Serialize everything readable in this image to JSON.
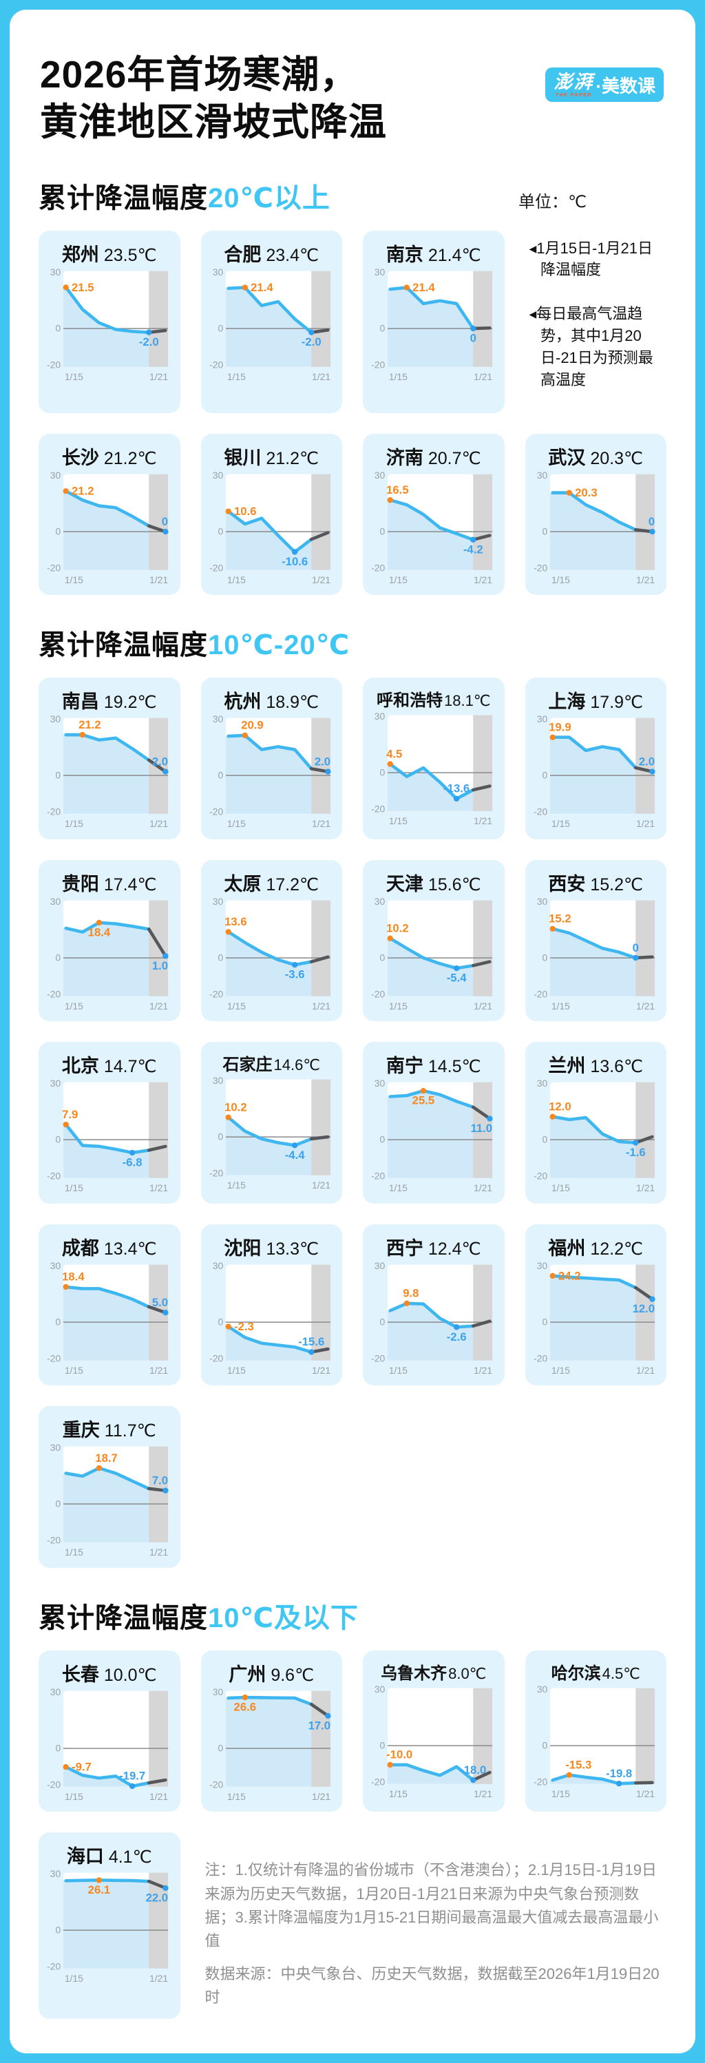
{
  "frame": {
    "title_line1": "2026年首场寒潮，",
    "title_line2": "黄淮地区滑坡式降温",
    "unit_label": "单位：℃",
    "logo": {
      "brand": "澎湃",
      "sub": "THE PAPER",
      "suffix": "·美数课"
    }
  },
  "legend": {
    "marker": "◀",
    "item1": "1月15日-1月21日降温幅度",
    "item2": "每日最高气温趋势，其中1月20日-21日为预测最高温度"
  },
  "sections": [
    {
      "title_black": "累计降温幅度",
      "title_blue": "20℃以上"
    },
    {
      "title_black": "累计降温幅度",
      "title_blue": "10℃-20℃"
    },
    {
      "title_black": "累计降温幅度",
      "title_blue": "10℃及以下"
    }
  ],
  "axis": {
    "y_ticks": [
      "30",
      "0",
      "-20"
    ],
    "x_ticks": [
      "1/15",
      "1/21"
    ],
    "ylim": [
      -20,
      30
    ],
    "x": [
      "1/15",
      "1/16",
      "1/17",
      "1/18",
      "1/19",
      "1/20",
      "1/21"
    ],
    "forecast_band_idx": [
      5,
      6
    ]
  },
  "notes": {
    "note1": "注：1.仅统计有降温的省份城市（不含港澳台）；2.1月15日-1月19日来源为历史天气数据，1月20日-1月21日来源为中央气象台预测数据；3.累计降温幅度为1月15-21日期间最高温最大值减去最高温最小值",
    "source": "数据来源：中央气象台、历史天气数据，数据截至2026年1月19日20时"
  },
  "colors": {
    "frame_blue": "#40c5f1",
    "accent_blue": "#3fc6f3",
    "card_bg": "#e1f3fc",
    "area": "#cfe9f8",
    "band": "#d6d6d6",
    "line": "#3eb7f0",
    "forecast": "#55575a",
    "orange": "#f6881f",
    "dotblue": "#2d9ff0",
    "valblue": "#3aa2ee",
    "axis_gray": "#9aa0a6",
    "note_gray": "#8f8f8f"
  },
  "chart_data": [
    {
      "type": "line",
      "city": "郑州",
      "drop": "23.5℃",
      "section": 0,
      "values": [
        21.5,
        10,
        3,
        -0.5,
        -1.5,
        -2,
        -1
      ],
      "max_idx": 0,
      "max_label": "21.5",
      "lp_max": "r",
      "min_idx": 5,
      "min_label": "-2.0",
      "lp_min": "b"
    },
    {
      "type": "line",
      "city": "合肥",
      "drop": "23.4℃",
      "section": 0,
      "values": [
        21,
        21.4,
        12,
        14,
        5,
        -2,
        -0.8
      ],
      "max_idx": 1,
      "max_label": "21.4",
      "lp_max": "r",
      "min_idx": 5,
      "min_label": "-2.0",
      "lp_min": "b"
    },
    {
      "type": "line",
      "city": "南京",
      "drop": "21.4℃",
      "section": 0,
      "values": [
        20.5,
        21.4,
        13,
        14.5,
        13,
        0,
        0.3
      ],
      "max_idx": 1,
      "max_label": "21.4",
      "lp_max": "r",
      "min_idx": 5,
      "min_label": "0",
      "lp_min": "b"
    },
    {
      "type": "line",
      "city": "长沙",
      "drop": "21.2℃",
      "section": 0,
      "values": [
        21.2,
        16.5,
        13.5,
        12.5,
        8,
        3,
        0
      ],
      "max_idx": 0,
      "max_label": "21.2",
      "lp_max": "r",
      "min_idx": 6,
      "min_label": "0",
      "lp_min": "a"
    },
    {
      "type": "line",
      "city": "银川",
      "drop": "21.2℃",
      "section": 0,
      "values": [
        10.6,
        4,
        7,
        -2,
        -10.6,
        -4,
        -0.5
      ],
      "max_idx": 0,
      "max_label": "10.6",
      "lp_max": "r",
      "min_idx": 4,
      "min_label": "-10.6",
      "lp_min": "b"
    },
    {
      "type": "line",
      "city": "济南",
      "drop": "20.7℃",
      "section": 0,
      "values": [
        16.5,
        14,
        9,
        2,
        -1,
        -4.2,
        -2
      ],
      "max_idx": 0,
      "max_label": "16.5",
      "lp_max": "a",
      "min_idx": 5,
      "min_label": "-4.2",
      "lp_min": "b"
    },
    {
      "type": "line",
      "city": "武汉",
      "drop": "20.3℃",
      "section": 0,
      "values": [
        20.3,
        20.3,
        14,
        10,
        5,
        1,
        0
      ],
      "max_idx": 1,
      "max_label": "20.3",
      "lp_max": "r",
      "min_idx": 6,
      "min_label": "0",
      "lp_min": "a"
    },
    {
      "type": "line",
      "city": "南昌",
      "drop": "19.2℃",
      "section": 1,
      "values": [
        21.2,
        21.2,
        18.5,
        19.5,
        14,
        8,
        2
      ],
      "max_idx": 1,
      "max_label": "21.2",
      "lp_max": "a",
      "min_idx": 6,
      "min_label": "2.0",
      "lp_min": "a"
    },
    {
      "type": "line",
      "city": "杭州",
      "drop": "18.9℃",
      "section": 1,
      "values": [
        20.5,
        20.9,
        13.5,
        15,
        13.5,
        3.5,
        2
      ],
      "max_idx": 1,
      "max_label": "20.9",
      "lp_max": "a",
      "min_idx": 6,
      "min_label": "2.0",
      "lp_min": "a"
    },
    {
      "type": "line",
      "city": "呼和浩特",
      "drop": "18.1℃",
      "section": 1,
      "values": [
        4.5,
        -2,
        2.5,
        -5,
        -13.6,
        -9,
        -7
      ],
      "max_idx": 0,
      "max_label": "4.5",
      "lp_max": "a",
      "min_idx": 4,
      "min_label": "-13.6",
      "lp_min": "a"
    },
    {
      "type": "line",
      "city": "上海",
      "drop": "17.9℃",
      "section": 1,
      "values": [
        19.9,
        19.9,
        13,
        15,
        13.5,
        4,
        2
      ],
      "max_idx": 0,
      "max_label": "19.9",
      "lp_max": "a",
      "min_idx": 6,
      "min_label": "2.0",
      "lp_min": "a"
    },
    {
      "type": "line",
      "city": "贵阳",
      "drop": "17.4℃",
      "section": 1,
      "values": [
        15.5,
        13.5,
        18.4,
        17.8,
        16.5,
        15,
        1
      ],
      "max_idx": 2,
      "max_label": "18.4",
      "lp_max": "b",
      "min_idx": 6,
      "min_label": "1.0",
      "lp_min": "b"
    },
    {
      "type": "line",
      "city": "太原",
      "drop": "17.2℃",
      "section": 1,
      "values": [
        13.6,
        8,
        3,
        -1,
        -3.6,
        -2,
        0.5
      ],
      "max_idx": 0,
      "max_label": "13.6",
      "lp_max": "a",
      "min_idx": 4,
      "min_label": "-3.6",
      "lp_min": "b"
    },
    {
      "type": "line",
      "city": "天津",
      "drop": "15.6℃",
      "section": 1,
      "values": [
        10.2,
        5,
        0,
        -3,
        -5.4,
        -4,
        -2
      ],
      "max_idx": 0,
      "max_label": "10.2",
      "lp_max": "a",
      "min_idx": 4,
      "min_label": "-5.4",
      "lp_min": "b"
    },
    {
      "type": "line",
      "city": "西安",
      "drop": "15.2℃",
      "section": 1,
      "values": [
        15.2,
        13,
        9,
        5,
        3,
        0,
        0.5
      ],
      "max_idx": 0,
      "max_label": "15.2",
      "lp_max": "a",
      "min_idx": 5,
      "min_label": "0",
      "lp_min": "a"
    },
    {
      "type": "line",
      "city": "北京",
      "drop": "14.7℃",
      "section": 1,
      "values": [
        7.9,
        -3,
        -3.5,
        -5,
        -6.8,
        -5.5,
        -3.5
      ],
      "max_idx": 0,
      "max_label": "7.9",
      "lp_max": "a",
      "min_idx": 4,
      "min_label": "-6.8",
      "lp_min": "b"
    },
    {
      "type": "line",
      "city": "石家庄",
      "drop": "14.6℃",
      "section": 1,
      "values": [
        10.2,
        3,
        -1,
        -3,
        -4.4,
        -1,
        0
      ],
      "max_idx": 0,
      "max_label": "10.2",
      "lp_max": "a",
      "min_idx": 4,
      "min_label": "-4.4",
      "lp_min": "b"
    },
    {
      "type": "line",
      "city": "南宁",
      "drop": "14.5℃",
      "section": 1,
      "values": [
        22.5,
        23,
        25.5,
        23.5,
        20,
        17,
        11
      ],
      "max_idx": 2,
      "max_label": "25.5",
      "lp_max": "b",
      "min_idx": 6,
      "min_label": "11.0",
      "lp_min": "b"
    },
    {
      "type": "line",
      "city": "兰州",
      "drop": "13.6℃",
      "section": 1,
      "values": [
        12,
        10.5,
        11.5,
        3,
        -1,
        -1.6,
        1.5
      ],
      "max_idx": 0,
      "max_label": "12.0",
      "lp_max": "a",
      "min_idx": 5,
      "min_label": "-1.6",
      "lp_min": "b"
    },
    {
      "type": "line",
      "city": "成都",
      "drop": "13.4℃",
      "section": 1,
      "values": [
        18.4,
        17.5,
        17.5,
        15,
        12,
        8,
        5
      ],
      "max_idx": 0,
      "max_label": "18.4",
      "lp_max": "a",
      "min_idx": 6,
      "min_label": "5.0",
      "lp_min": "a"
    },
    {
      "type": "line",
      "city": "沈阳",
      "drop": "13.3℃",
      "section": 1,
      "values": [
        -2.3,
        -8,
        -11,
        -12,
        -13,
        -15.6,
        -14
      ],
      "max_idx": 0,
      "max_label": "-2.3",
      "lp_max": "r",
      "min_idx": 5,
      "min_label": "-15.6",
      "lp_min": "a"
    },
    {
      "type": "line",
      "city": "西宁",
      "drop": "12.4℃",
      "section": 1,
      "values": [
        6,
        9.8,
        9.5,
        2,
        -2.6,
        -2,
        0.5
      ],
      "max_idx": 1,
      "max_label": "9.8",
      "lp_max": "a",
      "min_idx": 4,
      "min_label": "-2.6",
      "lp_min": "b"
    },
    {
      "type": "line",
      "city": "福州",
      "drop": "12.2℃",
      "section": 1,
      "values": [
        24.2,
        23.5,
        23,
        22.5,
        22,
        18,
        12
      ],
      "max_idx": 0,
      "max_label": "24.2",
      "lp_max": "r",
      "min_idx": 6,
      "min_label": "12.0",
      "lp_min": "b"
    },
    {
      "type": "line",
      "city": "重庆",
      "drop": "11.7℃",
      "section": 1,
      "values": [
        16,
        14.5,
        18.7,
        16,
        12,
        8,
        7
      ],
      "max_idx": 2,
      "max_label": "18.7",
      "lp_max": "a",
      "min_idx": 6,
      "min_label": "7.0",
      "lp_min": "a"
    },
    {
      "type": "line",
      "city": "长春",
      "drop": "10.0℃",
      "section": 2,
      "values": [
        -9.7,
        -14,
        -15.5,
        -14.5,
        -19.7,
        -18,
        -16.5
      ],
      "max_idx": 0,
      "max_label": "-9.7",
      "lp_max": "r",
      "min_idx": 4,
      "min_label": "-19.7",
      "lp_min": "a"
    },
    {
      "type": "line",
      "city": "广州",
      "drop": "9.6℃",
      "section": 2,
      "values": [
        26.3,
        26.6,
        26.5,
        26.4,
        26.3,
        23,
        17
      ],
      "max_idx": 1,
      "max_label": "26.6",
      "lp_max": "b",
      "min_idx": 6,
      "min_label": "17.0",
      "lp_min": "b"
    },
    {
      "type": "line",
      "city": "乌鲁木齐",
      "drop": "8.0℃",
      "section": 2,
      "values": [
        -10,
        -10,
        -13,
        -15.5,
        -11,
        -18,
        -14
      ],
      "max_idx": 0,
      "max_label": "-10.0",
      "lp_max": "a",
      "min_idx": 5,
      "min_label": "-18.0",
      "lp_min": "a"
    },
    {
      "type": "line",
      "city": "哈尔滨",
      "drop": "4.5℃",
      "section": 2,
      "values": [
        -18,
        -15.3,
        -16.5,
        -17.5,
        -19.8,
        -19.5,
        -19.3
      ],
      "max_idx": 1,
      "max_label": "-15.3",
      "lp_max": "a",
      "min_idx": 4,
      "min_label": "-19.8",
      "lp_min": "a"
    },
    {
      "type": "line",
      "city": "海口",
      "drop": "4.1℃",
      "section": 2,
      "values": [
        25.8,
        26,
        26.1,
        26,
        25.9,
        25.5,
        22
      ],
      "max_idx": 2,
      "max_label": "26.1",
      "lp_max": "b",
      "min_idx": 6,
      "min_label": "22.0",
      "lp_min": "b"
    }
  ]
}
